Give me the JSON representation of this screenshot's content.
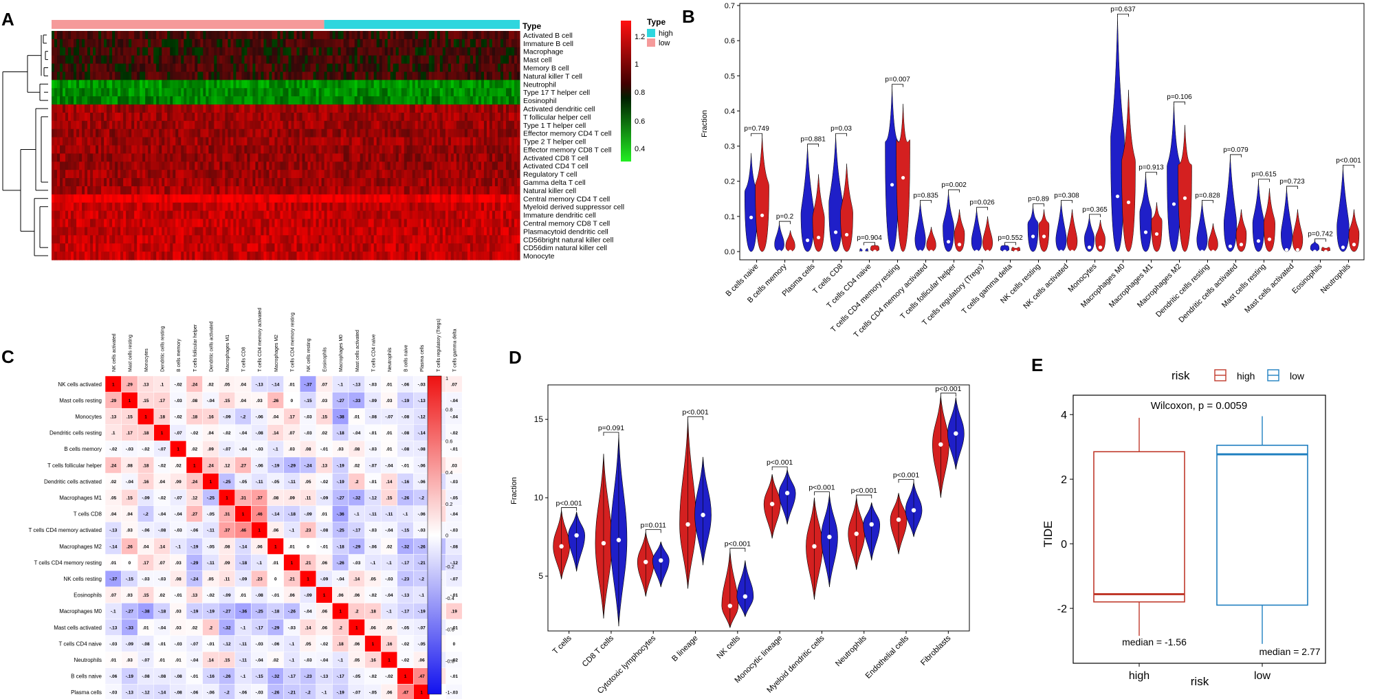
{
  "panel_letters": {
    "a": "A",
    "b": "B",
    "c": "C",
    "d": "D",
    "e": "E"
  },
  "colors": {
    "high_red": "#d42020",
    "low_blue": "#1f1fc8",
    "annot_low": "#f59a9a",
    "annot_high": "#2fd6de",
    "box_high": "#c0392b",
    "box_low": "#1f7fc0",
    "corr_pos": "#ee1111",
    "corr_neg": "#1111ee"
  },
  "panelA": {
    "annot_label": "Type",
    "legend_title": "Type",
    "legend_items": [
      {
        "label": "high",
        "color": "#2fd6de"
      },
      {
        "label": "low",
        "color": "#f59a9a"
      }
    ],
    "colorbar_ticks": [
      "1.2",
      "1",
      "0.8",
      "0.6",
      "0.4"
    ],
    "rows": [
      "Activated B cell",
      "Immature  B cell",
      "Macrophage",
      "Mast cell",
      "Memory B cell",
      "Natural killer T cell",
      "Neutrophil",
      "Type 17 T helper cell",
      "Eosinophil",
      "Activated dendritic cell",
      "T follicular helper cell",
      "Type 1 T helper cell",
      "Effector memory CD4 T cell",
      "Type 2 T helper cell",
      "Effector memory CD8 T cell",
      "Activated CD8 T cell",
      "Activated CD4 T cell",
      "Regulatory T cell",
      "Gamma delta T cell",
      "Natural killer cell",
      "Central memory CD4 T cell",
      "Myeloid derived suppressor cell",
      "Immature dendritic cell",
      "Central memory CD8 T cell",
      "Plasmacytoid dendritic cell",
      "CD56bright natural killer cell",
      "CD56dim natural killer cell",
      "Monocyte"
    ],
    "row_levels": [
      0.15,
      0.12,
      0.1,
      0.12,
      0.14,
      0.15,
      -0.55,
      -0.5,
      -0.45,
      0.55,
      0.55,
      0.55,
      0.5,
      0.55,
      0.52,
      0.5,
      0.52,
      0.55,
      0.55,
      0.6,
      0.95,
      0.72,
      0.72,
      0.72,
      0.72,
      0.72,
      0.72,
      0.72
    ]
  },
  "panelB": {
    "ylabel": "Fraction",
    "yticks": [
      "0.0",
      "0.1",
      "0.2",
      "0.3",
      "0.4",
      "0.5",
      "0.6",
      "0.7"
    ],
    "chart_data": {
      "type": "violin",
      "ylim": [
        0,
        0.7
      ],
      "categories": [
        "B cells naive",
        "B cells memory",
        "Plasma cells",
        "T cells CD8",
        "T cells CD4 naive",
        "T cells CD4 memory resting",
        "T cells CD4 memory activated",
        "T cells follicular helper",
        "T cells regulatory (Tregs)",
        "T cells gamma delta",
        "NK cells resting",
        "NK cells activated",
        "Monocytes",
        "Macrophages M0",
        "Macrophages M1",
        "Macrophages M2",
        "Dendritic cells resting",
        "Dendritic cells activated",
        "Mast cells resting",
        "Mast cells activated",
        "Eosinophils",
        "Neutrophils"
      ],
      "pvalues": [
        "p=0.749",
        "p=0.2",
        "p=0.881",
        "p=0.03",
        "p=0.904",
        "p=0.007",
        "p=0.835",
        "p=0.002",
        "p=0.026",
        "p=0.552",
        "p=0.89",
        "p=0.308",
        "p=0.365",
        "p=0.637",
        "p=0.913",
        "p=0.106",
        "p=0.828",
        "p=0.079",
        "p=0.615",
        "p=0.723",
        "p=0.742",
        "p<0.001"
      ],
      "blue_max": [
        0.28,
        0.08,
        0.3,
        0.33,
        0.0,
        0.47,
        0.14,
        0.17,
        0.12,
        0.02,
        0.13,
        0.14,
        0.1,
        0.67,
        0.22,
        0.42,
        0.14,
        0.27,
        0.2,
        0.18,
        0.03,
        0.24
      ],
      "red_max": [
        0.33,
        0.06,
        0.22,
        0.25,
        0.02,
        0.42,
        0.07,
        0.12,
        0.1,
        0.01,
        0.12,
        0.12,
        0.09,
        0.46,
        0.14,
        0.36,
        0.08,
        0.12,
        0.18,
        0.12,
        0.01,
        0.12
      ],
      "blue_median": [
        0.097,
        0.0,
        0.032,
        0.055,
        0.0,
        0.19,
        0.0,
        0.028,
        0.0,
        0.0,
        0.043,
        0.0,
        0.012,
        0.157,
        0.055,
        0.135,
        0.0,
        0.015,
        0.03,
        0.005,
        0.0,
        0.012
      ],
      "red_median": [
        0.103,
        0.0,
        0.04,
        0.048,
        0.0,
        0.21,
        0.0,
        0.02,
        0.0,
        0.0,
        0.043,
        0.0,
        0.012,
        0.14,
        0.05,
        0.152,
        0.0,
        0.02,
        0.035,
        0.005,
        0.0,
        0.02
      ]
    }
  },
  "panelC": {
    "labels": [
      "NK cells activated",
      "Mast cells resting",
      "Monocytes",
      "Dendritic cells resting",
      "B cells memory",
      "T cells follicular helper",
      "Dendritic cells activated",
      "Macrophages M1",
      "T cells CD8",
      "T cells CD4 memory activated",
      "Macrophages M2",
      "T cells CD4 memory resting",
      "NK cells resting",
      "Eosinophils",
      "Macrophages M0",
      "Mast cells activated",
      "T cells CD4 naive",
      "Neutrophils",
      "B cells naive",
      "Plasma cells",
      "T cells regulatory (Tregs)",
      "T cells gamma delta"
    ],
    "matrix": [
      [
        1,
        0.29,
        0.13,
        0.1,
        -0.02,
        0.24,
        0.02,
        0.05,
        0.04,
        -0.13,
        -0.14,
        0.01,
        -0.37,
        0.07,
        -0.1,
        -0.13,
        -0.03,
        0.01,
        -0.06,
        -0.03,
        0.11,
        0.07
      ],
      [
        0.29,
        1,
        0.15,
        0.17,
        -0.03,
        0.08,
        -0.04,
        0.15,
        0.04,
        0.03,
        0.26,
        0,
        -0.15,
        0.03,
        -0.27,
        -0.33,
        -0.09,
        0.03,
        -0.19,
        -0.13,
        -0.04,
        -0.04
      ],
      [
        0.13,
        0.15,
        1,
        0.18,
        -0.02,
        0.18,
        0.16,
        -0.09,
        -0.2,
        -0.06,
        0.04,
        0.17,
        -0.03,
        0.15,
        -0.38,
        0.01,
        -0.08,
        -0.07,
        -0.08,
        -0.12,
        -0.08,
        -0.04
      ],
      [
        0.1,
        0.17,
        0.18,
        1,
        -0.07,
        -0.02,
        0.04,
        -0.02,
        -0.04,
        -0.08,
        0.14,
        0.07,
        -0.03,
        0.02,
        -0.18,
        -0.04,
        -0.01,
        0.01,
        -0.08,
        -0.14,
        -0.07,
        -0.02
      ],
      [
        -0.02,
        -0.03,
        -0.02,
        -0.07,
        1,
        0.02,
        0.09,
        -0.07,
        -0.04,
        -0.03,
        -0.1,
        0.03,
        0.08,
        -0.01,
        0.03,
        0.08,
        -0.03,
        0.01,
        -0.08,
        -0.08,
        -0.01,
        -0.01
      ],
      [
        0.24,
        0.08,
        0.18,
        -0.02,
        0.02,
        1,
        0.24,
        0.12,
        0.27,
        -0.06,
        -0.19,
        -0.29,
        -0.24,
        0.13,
        -0.19,
        0.02,
        -0.07,
        -0.04,
        -0.01,
        -0.06,
        0.13,
        0.03
      ],
      [
        0.02,
        -0.04,
        0.16,
        0.04,
        0.09,
        0.24,
        1,
        -0.25,
        -0.05,
        -0.11,
        -0.05,
        -0.11,
        0.05,
        -0.02,
        -0.19,
        0.2,
        -0.01,
        0.14,
        -0.16,
        -0.06,
        -0.14,
        -0.03
      ],
      [
        0.05,
        0.15,
        -0.09,
        -0.02,
        -0.07,
        0.12,
        -0.25,
        1,
        0.31,
        0.37,
        0.08,
        0.09,
        0.11,
        -0.09,
        -0.27,
        -0.32,
        -0.12,
        0.15,
        -0.26,
        -0.2,
        0.13,
        -0.05
      ],
      [
        0.04,
        0.04,
        -0.2,
        -0.04,
        -0.04,
        0.27,
        -0.05,
        0.31,
        1,
        0.46,
        -0.14,
        -0.18,
        -0.09,
        0.01,
        -0.36,
        -0.1,
        -0.11,
        -0.11,
        -0.1,
        -0.06,
        0.15,
        -0.04
      ],
      [
        -0.13,
        0.03,
        -0.06,
        -0.08,
        -0.03,
        -0.06,
        -0.11,
        0.37,
        0.46,
        1,
        0.06,
        -0.1,
        0.23,
        -0.08,
        -0.25,
        -0.17,
        -0.03,
        -0.04,
        -0.15,
        -0.03,
        -0.03,
        -0.03
      ],
      [
        -0.14,
        0.26,
        0.04,
        0.14,
        -0.1,
        -0.19,
        -0.05,
        0.08,
        -0.14,
        0.06,
        1,
        0.01,
        0,
        -0.01,
        -0.18,
        -0.29,
        -0.06,
        0.02,
        -0.32,
        -0.26,
        -0.26,
        -0.08
      ],
      [
        0.01,
        0,
        0.17,
        0.07,
        0.03,
        -0.29,
        -0.11,
        0.09,
        -0.18,
        -0.1,
        0.01,
        1,
        0.21,
        0.06,
        -0.26,
        -0.03,
        -0.1,
        -0.1,
        -0.17,
        -0.21,
        -0.22,
        -0.12
      ],
      [
        -0.37,
        -0.15,
        -0.03,
        -0.03,
        0.08,
        -0.24,
        0.05,
        0.11,
        -0.09,
        0.23,
        0,
        0.21,
        1,
        -0.09,
        -0.04,
        0.14,
        0.05,
        -0.03,
        -0.23,
        -0.2,
        -0.04,
        -0.07
      ],
      [
        0.07,
        0.03,
        0.15,
        0.02,
        -0.01,
        0.13,
        -0.02,
        -0.09,
        0.01,
        -0.08,
        -0.01,
        0.06,
        -0.09,
        1,
        0.06,
        0.06,
        -0.02,
        -0.04,
        -0.13,
        -0.1,
        -0.03,
        -0.01
      ],
      [
        -0.1,
        -0.27,
        -0.38,
        -0.18,
        0.03,
        -0.19,
        -0.19,
        -0.27,
        -0.36,
        -0.25,
        -0.18,
        -0.26,
        -0.04,
        0.06,
        1,
        0.2,
        0.18,
        -0.1,
        -0.17,
        -0.19,
        0.06,
        0.19
      ],
      [
        -0.13,
        -0.33,
        0.01,
        -0.04,
        0.03,
        0.02,
        0.2,
        -0.32,
        -0.1,
        -0.17,
        -0.29,
        -0.03,
        0.14,
        0.06,
        0.2,
        1,
        0.06,
        0.05,
        -0.05,
        -0.07,
        -0.08,
        -0.01
      ],
      [
        -0.03,
        -0.09,
        -0.08,
        -0.01,
        -0.03,
        -0.07,
        -0.01,
        -0.12,
        -0.11,
        -0.03,
        -0.06,
        -0.1,
        0.05,
        -0.02,
        0.18,
        0.06,
        1,
        0.16,
        -0.02,
        -0.05,
        0.03,
        0
      ],
      [
        0.01,
        0.03,
        -0.07,
        0.01,
        0.01,
        -0.04,
        0.14,
        0.15,
        -0.11,
        -0.04,
        0.02,
        -0.1,
        -0.03,
        -0.04,
        -0.1,
        0.05,
        0.16,
        1,
        -0.02,
        0.06,
        -0.08,
        -0.02
      ],
      [
        -0.06,
        -0.19,
        -0.08,
        -0.08,
        -0.08,
        -0.01,
        -0.16,
        -0.26,
        -0.1,
        -0.15,
        -0.32,
        -0.17,
        -0.23,
        -0.13,
        -0.17,
        -0.05,
        -0.02,
        -0.02,
        1,
        0.47,
        0.11,
        -0.01
      ],
      [
        -0.03,
        -0.13,
        -0.12,
        -0.14,
        -0.08,
        -0.06,
        -0.06,
        -0.2,
        -0.06,
        -0.03,
        -0.26,
        -0.21,
        -0.2,
        -0.1,
        -0.19,
        -0.07,
        -0.05,
        0.06,
        0.47,
        1,
        0,
        -0.03
      ],
      [
        0.11,
        -0.04,
        -0.08,
        -0.07,
        -0.01,
        0.13,
        -0.14,
        0.13,
        0.15,
        -0.03,
        -0.26,
        -0.22,
        -0.04,
        -0.03,
        0.06,
        -0.08,
        0.03,
        -0.08,
        0.11,
        0,
        1,
        0.16
      ],
      [
        0.07,
        -0.04,
        -0.04,
        -0.02,
        -0.01,
        0.03,
        -0.03,
        -0.05,
        -0.04,
        -0.03,
        -0.08,
        -0.12,
        -0.07,
        -0.01,
        0.19,
        -0.01,
        0,
        -0.02,
        -0.01,
        -0.03,
        0.16,
        1
      ]
    ],
    "colorbar_ticks": [
      "1",
      "0.8",
      "0.6",
      "0.4",
      "0.2",
      "0",
      "-0.2",
      "-0.4",
      "-0.6",
      "-0.8",
      "-1"
    ]
  },
  "panelD": {
    "ylabel": "Fraction",
    "yticks": [
      "5",
      "10",
      "15"
    ],
    "chart_data": {
      "type": "violin",
      "ylim": [
        1.5,
        17.2
      ],
      "categories": [
        "T cells",
        "CD8 T cells",
        "Cytotoxic lymphocytes",
        "B lineage",
        "NK cells",
        "Monocytic lineage",
        "Myeloid dendritic cells",
        "Neutrophils",
        "Endothelial cells",
        "Fibroblasts"
      ],
      "pvalues": [
        "p<0.001",
        "p=0.091",
        "p=0.011",
        "p<0.001",
        "p<0.001",
        "p<0.001",
        "p<0.001",
        "p<0.001",
        "p<0.001",
        "p<0.001"
      ],
      "red": [
        [
          4.8,
          6.9,
          9.2
        ],
        [
          2.3,
          7.1,
          12.8
        ],
        [
          3.7,
          5.9,
          7.8
        ],
        [
          4.2,
          8.3,
          15.0
        ],
        [
          1.7,
          3.1,
          6.6
        ],
        [
          7.4,
          9.6,
          11.5
        ],
        [
          3.5,
          6.9,
          10.0
        ],
        [
          5.4,
          7.7,
          10.0
        ],
        [
          6.4,
          8.6,
          10.3
        ],
        [
          10.0,
          13.4,
          16.5
        ]
      ],
      "blue": [
        [
          5.3,
          7.6,
          9.1
        ],
        [
          1.8,
          7.3,
          14.0
        ],
        [
          4.3,
          6.0,
          7.2
        ],
        [
          5.7,
          8.9,
          12.6
        ],
        [
          2.4,
          3.7,
          6.0
        ],
        [
          8.3,
          10.3,
          11.8
        ],
        [
          4.3,
          7.5,
          10.2
        ],
        [
          6.0,
          8.3,
          9.7
        ],
        [
          7.5,
          9.2,
          11.0
        ],
        [
          11.8,
          14.1,
          16.4
        ]
      ]
    }
  },
  "panelE": {
    "legend_title": "risk",
    "legend_items": [
      "high",
      "low"
    ],
    "title": "Wilcoxon, p = 0.0059",
    "ylabel": "TIDE",
    "xlabel": "risk",
    "yticks": [
      "-2",
      "0",
      "2",
      "4"
    ],
    "chart_data": {
      "type": "box",
      "ylim": [
        -3.7,
        4.6
      ],
      "categories": [
        "high",
        "low"
      ],
      "boxes": [
        {
          "min": -2.85,
          "q1": -1.8,
          "median": -1.56,
          "q3": 2.85,
          "max": 3.9
        },
        {
          "min": -3.1,
          "q1": -1.9,
          "median": 2.77,
          "q3": 3.05,
          "max": 3.95
        }
      ],
      "annotations": [
        "median = -1.56",
        "median = 2.77"
      ]
    }
  }
}
